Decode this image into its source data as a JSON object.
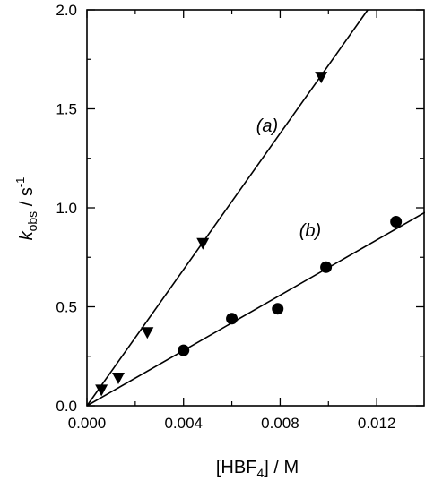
{
  "chart_data": {
    "type": "scatter",
    "title": "",
    "xlabel": {
      "main": "[HBF",
      "sub": "4",
      "tail": "] / M"
    },
    "ylabel": {
      "main": "k",
      "sub": "obs",
      "tail": " / s",
      "sup": "-1"
    },
    "xlim": [
      0.0,
      0.014
    ],
    "ylim": [
      0.0,
      2.0
    ],
    "x_ticks": [
      0.0,
      0.004,
      0.008,
      0.012
    ],
    "x_tick_labels": [
      "0.000",
      "0.004",
      "0.008",
      "0.012"
    ],
    "y_ticks": [
      0.0,
      0.5,
      1.0,
      1.5,
      2.0
    ],
    "y_tick_labels": [
      "0.0",
      "0.5",
      "1.0",
      "1.5",
      "2.0"
    ],
    "x_minor_step": 0.002,
    "y_minor_step": 0.25,
    "grid": false,
    "series": [
      {
        "name": "(a)",
        "marker": "triangle-down",
        "x": [
          0.0006,
          0.0013,
          0.0025,
          0.0048,
          0.0097
        ],
        "y": [
          0.08,
          0.14,
          0.37,
          0.82,
          1.66
        ],
        "fit": {
          "type": "linear",
          "slope": 172,
          "intercept": 0
        }
      },
      {
        "name": "(b)",
        "marker": "circle",
        "x": [
          0.004,
          0.006,
          0.0079,
          0.0099,
          0.0128
        ],
        "y": [
          0.28,
          0.44,
          0.49,
          0.7,
          0.93
        ],
        "fit": {
          "type": "linear",
          "slope": 69.8,
          "intercept": 0
        }
      }
    ]
  },
  "colors": {
    "ink": "#000000",
    "background": "#ffffff"
  }
}
